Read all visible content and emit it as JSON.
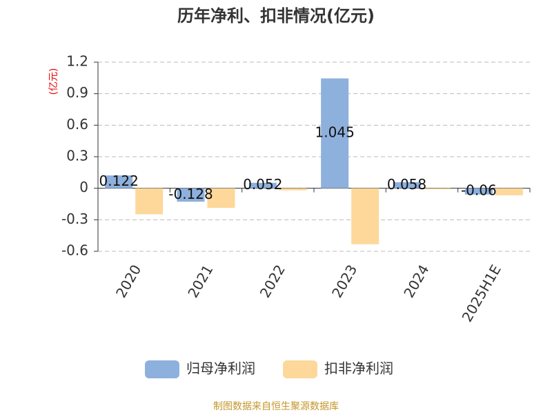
{
  "chart_data": {
    "type": "bar",
    "title": "历年净利、扣非情况(亿元)",
    "y_label": "(亿元)",
    "categories": [
      "2020",
      "2021",
      "2022",
      "2023",
      "2024",
      "2025H1E"
    ],
    "series": [
      {
        "name": "归母净利润",
        "color": "#8eb0dc",
        "values": [
          0.122,
          -0.128,
          0.052,
          1.045,
          0.058,
          -0.06
        ],
        "show_labels": true
      },
      {
        "name": "扣非净利润",
        "color": "#fdd89a",
        "values": [
          -0.247,
          -0.187,
          -0.02,
          -0.533,
          -0.01,
          -0.067
        ],
        "show_labels": false
      }
    ],
    "ylim": [
      -0.6,
      1.2
    ],
    "yticks": [
      -0.6,
      -0.3,
      0,
      0.3,
      0.6,
      0.9,
      1.2
    ],
    "grid": true,
    "source": "制图数据来自恒生聚源数据库"
  }
}
